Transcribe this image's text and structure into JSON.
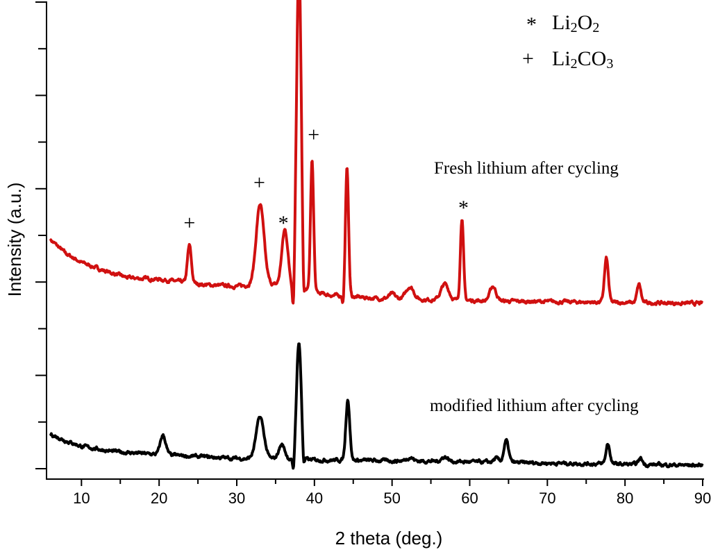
{
  "chart_data": {
    "type": "line",
    "title": "",
    "xlabel": "2 theta (deg.)",
    "ylabel": "Intensity (a.u.)",
    "xlim": [
      5.5,
      90
    ],
    "ylim": [
      -0.22,
      10
    ],
    "xticks": [
      10,
      20,
      30,
      40,
      50,
      60,
      70,
      80,
      90
    ],
    "xtick_labels": [
      "10",
      "20",
      "30",
      "40",
      "50",
      "60",
      "70",
      "80",
      "90"
    ],
    "yticks": [
      0,
      1,
      2,
      3,
      4,
      5,
      6,
      7,
      8,
      9,
      10
    ],
    "grid": false,
    "legend": {
      "placement": "top-right",
      "entries": [
        {
          "symbol": "*",
          "name": "Li",
          "sub1": "2",
          "mid": "O",
          "sub2": "2"
        },
        {
          "symbol": "+",
          "name": "Li",
          "sub1": "2",
          "mid": "CO",
          "sub2": "3"
        }
      ]
    },
    "series": [
      {
        "name": "Fresh lithium after cycling",
        "color": "#d01010",
        "baseline": [
          [
            6,
            4.91
          ],
          [
            8,
            4.61
          ],
          [
            10,
            4.42
          ],
          [
            13,
            4.24
          ],
          [
            16,
            4.09
          ],
          [
            20,
            4.06
          ],
          [
            22,
            4.02
          ],
          [
            26,
            3.94
          ],
          [
            30,
            3.91
          ],
          [
            34,
            3.97
          ],
          [
            37,
            3.87
          ],
          [
            42,
            3.72
          ],
          [
            48,
            3.65
          ],
          [
            55,
            3.62
          ],
          [
            65,
            3.59
          ],
          [
            75,
            3.57
          ],
          [
            90,
            3.54
          ]
        ],
        "peaks": [
          [
            23.9,
            0.8,
            0.25
          ],
          [
            33.0,
            1.71,
            0.5
          ],
          [
            36.2,
            1.22,
            0.4
          ],
          [
            37.3,
            -0.7,
            0.12
          ],
          [
            38.0,
            7.0,
            0.3
          ],
          [
            38.6,
            -0.7,
            0.12
          ],
          [
            39.7,
            2.8,
            0.2
          ],
          [
            43.7,
            -0.2,
            0.1
          ],
          [
            44.2,
            2.74,
            0.2
          ],
          [
            50.0,
            0.1,
            0.4
          ],
          [
            52.3,
            0.27,
            0.5
          ],
          [
            56.8,
            0.34,
            0.5
          ],
          [
            59.0,
            1.77,
            0.2
          ],
          [
            63.0,
            0.31,
            0.4
          ],
          [
            77.6,
            0.94,
            0.25
          ],
          [
            81.8,
            0.39,
            0.25
          ]
        ]
      },
      {
        "name": "modified lithium after cycling",
        "color": "#000000",
        "baseline": [
          [
            6,
            0.74
          ],
          [
            8,
            0.6
          ],
          [
            10,
            0.48
          ],
          [
            14,
            0.37
          ],
          [
            20,
            0.3
          ],
          [
            30,
            0.22
          ],
          [
            40,
            0.19
          ],
          [
            55,
            0.16
          ],
          [
            70,
            0.12
          ],
          [
            90,
            0.07
          ]
        ],
        "peaks": [
          [
            20.5,
            0.42,
            0.35
          ],
          [
            33.0,
            0.89,
            0.5
          ],
          [
            35.8,
            0.31,
            0.4
          ],
          [
            37.3,
            -0.35,
            0.12
          ],
          [
            38.0,
            2.51,
            0.3
          ],
          [
            38.6,
            -0.3,
            0.12
          ],
          [
            44.3,
            1.31,
            0.25
          ],
          [
            52.3,
            0.08,
            0.4
          ],
          [
            56.8,
            0.1,
            0.4
          ],
          [
            63.4,
            0.08,
            0.3
          ],
          [
            64.7,
            0.46,
            0.3
          ],
          [
            77.8,
            0.43,
            0.25
          ],
          [
            82.0,
            0.13,
            0.25
          ]
        ]
      }
    ],
    "annotations": [
      {
        "text": "+",
        "x": 23.9,
        "y": 5.13
      },
      {
        "text": "+",
        "x": 32.9,
        "y": 5.99
      },
      {
        "text": "*",
        "x": 36.0,
        "y": 5.12
      },
      {
        "text": "+",
        "x": 39.9,
        "y": 7.02
      },
      {
        "text": "*",
        "x": 59.2,
        "y": 5.45
      }
    ],
    "series_labels": [
      "Fresh lithium after cycling",
      "modified lithium after cycling"
    ]
  }
}
